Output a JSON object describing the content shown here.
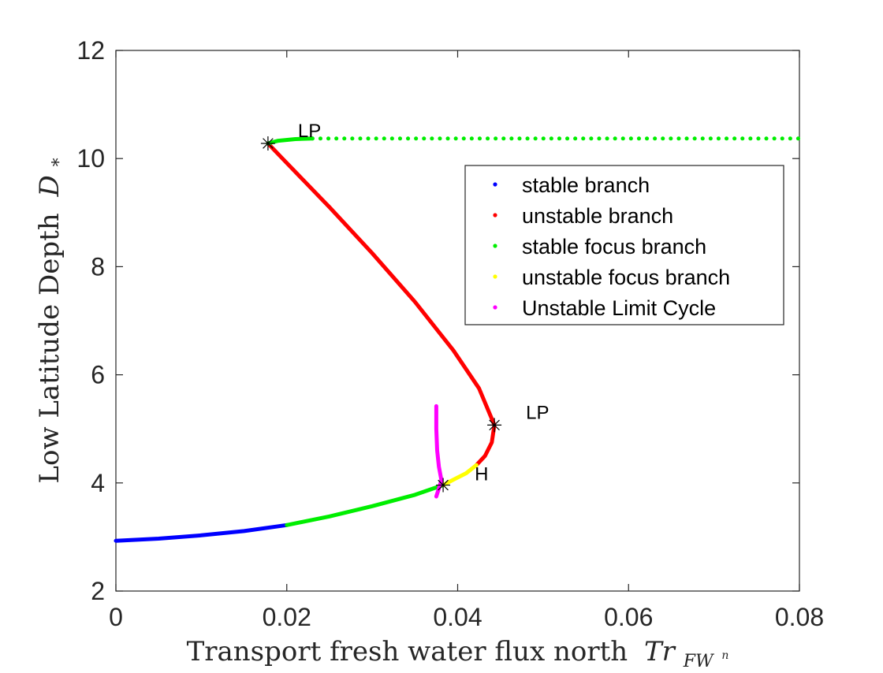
{
  "chart_data": {
    "type": "line",
    "title": "",
    "xlabel": "Transport fresh water flux north",
    "xlabel_math": "Tr",
    "xlabel_sub": "FW",
    "xlabel_subsup": "n",
    "ylabel": "Low Latitude Depth",
    "ylabel_math": "D",
    "ylabel_sub": "*",
    "xlim": [
      0,
      0.08
    ],
    "ylim": [
      2,
      12
    ],
    "xticks": [
      0,
      0.02,
      0.04,
      0.06,
      0.08
    ],
    "xtick_labels": [
      "0",
      "0.02",
      "0.04",
      "0.06",
      "0.08"
    ],
    "yticks": [
      2,
      4,
      6,
      8,
      10,
      12
    ],
    "ytick_labels": [
      "2",
      "4",
      "6",
      "8",
      "10",
      "12"
    ],
    "grid": false,
    "legend_position": "upper-right",
    "series": [
      {
        "name": "stable branch",
        "color": "#0000ff",
        "style": "solid",
        "points": [
          [
            0,
            2.93
          ],
          [
            0.005,
            2.97
          ],
          [
            0.01,
            3.03
          ],
          [
            0.015,
            3.11
          ],
          [
            0.02,
            3.22
          ]
        ]
      },
      {
        "name": "unstable branch",
        "color": "#ff0000",
        "style": "solid",
        "points": [
          [
            0.0178,
            10.28
          ],
          [
            0.0195,
            10.0
          ],
          [
            0.025,
            9.1
          ],
          [
            0.03,
            8.25
          ],
          [
            0.035,
            7.35
          ],
          [
            0.0395,
            6.45
          ],
          [
            0.0425,
            5.75
          ],
          [
            0.0443,
            5.07
          ],
          [
            0.044,
            4.75
          ],
          [
            0.0432,
            4.5
          ],
          [
            0.0422,
            4.33
          ]
        ]
      },
      {
        "name": "stable focus branch",
        "color": "#00ee00",
        "style": "solid",
        "points": [
          [
            0.02,
            3.22
          ],
          [
            0.025,
            3.38
          ],
          [
            0.03,
            3.57
          ],
          [
            0.035,
            3.78
          ],
          [
            0.0383,
            3.96
          ]
        ]
      },
      {
        "name": "stable focus branch",
        "color": "#00ee00",
        "style": "solid",
        "points": [
          [
            0.0178,
            10.28
          ],
          [
            0.019,
            10.33
          ],
          [
            0.021,
            10.36
          ],
          [
            0.023,
            10.37
          ]
        ]
      },
      {
        "name": "stable focus branch",
        "color": "#00ee00",
        "style": "dotted",
        "points": [
          [
            0.023,
            10.37
          ],
          [
            0.08,
            10.37
          ]
        ]
      },
      {
        "name": "unstable focus branch",
        "color": "#ffff00",
        "style": "solid",
        "points": [
          [
            0.0383,
            3.96
          ],
          [
            0.0395,
            4.06
          ],
          [
            0.041,
            4.18
          ],
          [
            0.0422,
            4.33
          ]
        ]
      },
      {
        "name": "Unstable Limit Cycle",
        "color": "#ff00ff",
        "style": "solid",
        "points": [
          [
            0.0375,
            5.42
          ],
          [
            0.0375,
            5.0
          ],
          [
            0.0376,
            4.6
          ],
          [
            0.0378,
            4.3
          ],
          [
            0.0381,
            4.05
          ],
          [
            0.0378,
            3.9
          ],
          [
            0.0375,
            3.75
          ]
        ]
      }
    ],
    "markers": [
      {
        "label": "LP",
        "x": 0.0178,
        "y": 10.28
      },
      {
        "label": "LP",
        "x": 0.0443,
        "y": 5.07
      },
      {
        "label": "H",
        "x": 0.0383,
        "y": 3.96
      }
    ],
    "legend": [
      {
        "label": "stable branch",
        "color": "#0000ff"
      },
      {
        "label": "unstable branch",
        "color": "#ff0000"
      },
      {
        "label": "stable focus branch",
        "color": "#00ee00"
      },
      {
        "label": "unstable focus branch",
        "color": "#ffff00"
      },
      {
        "label": "Unstable Limit Cycle",
        "color": "#ff00ff"
      }
    ]
  }
}
